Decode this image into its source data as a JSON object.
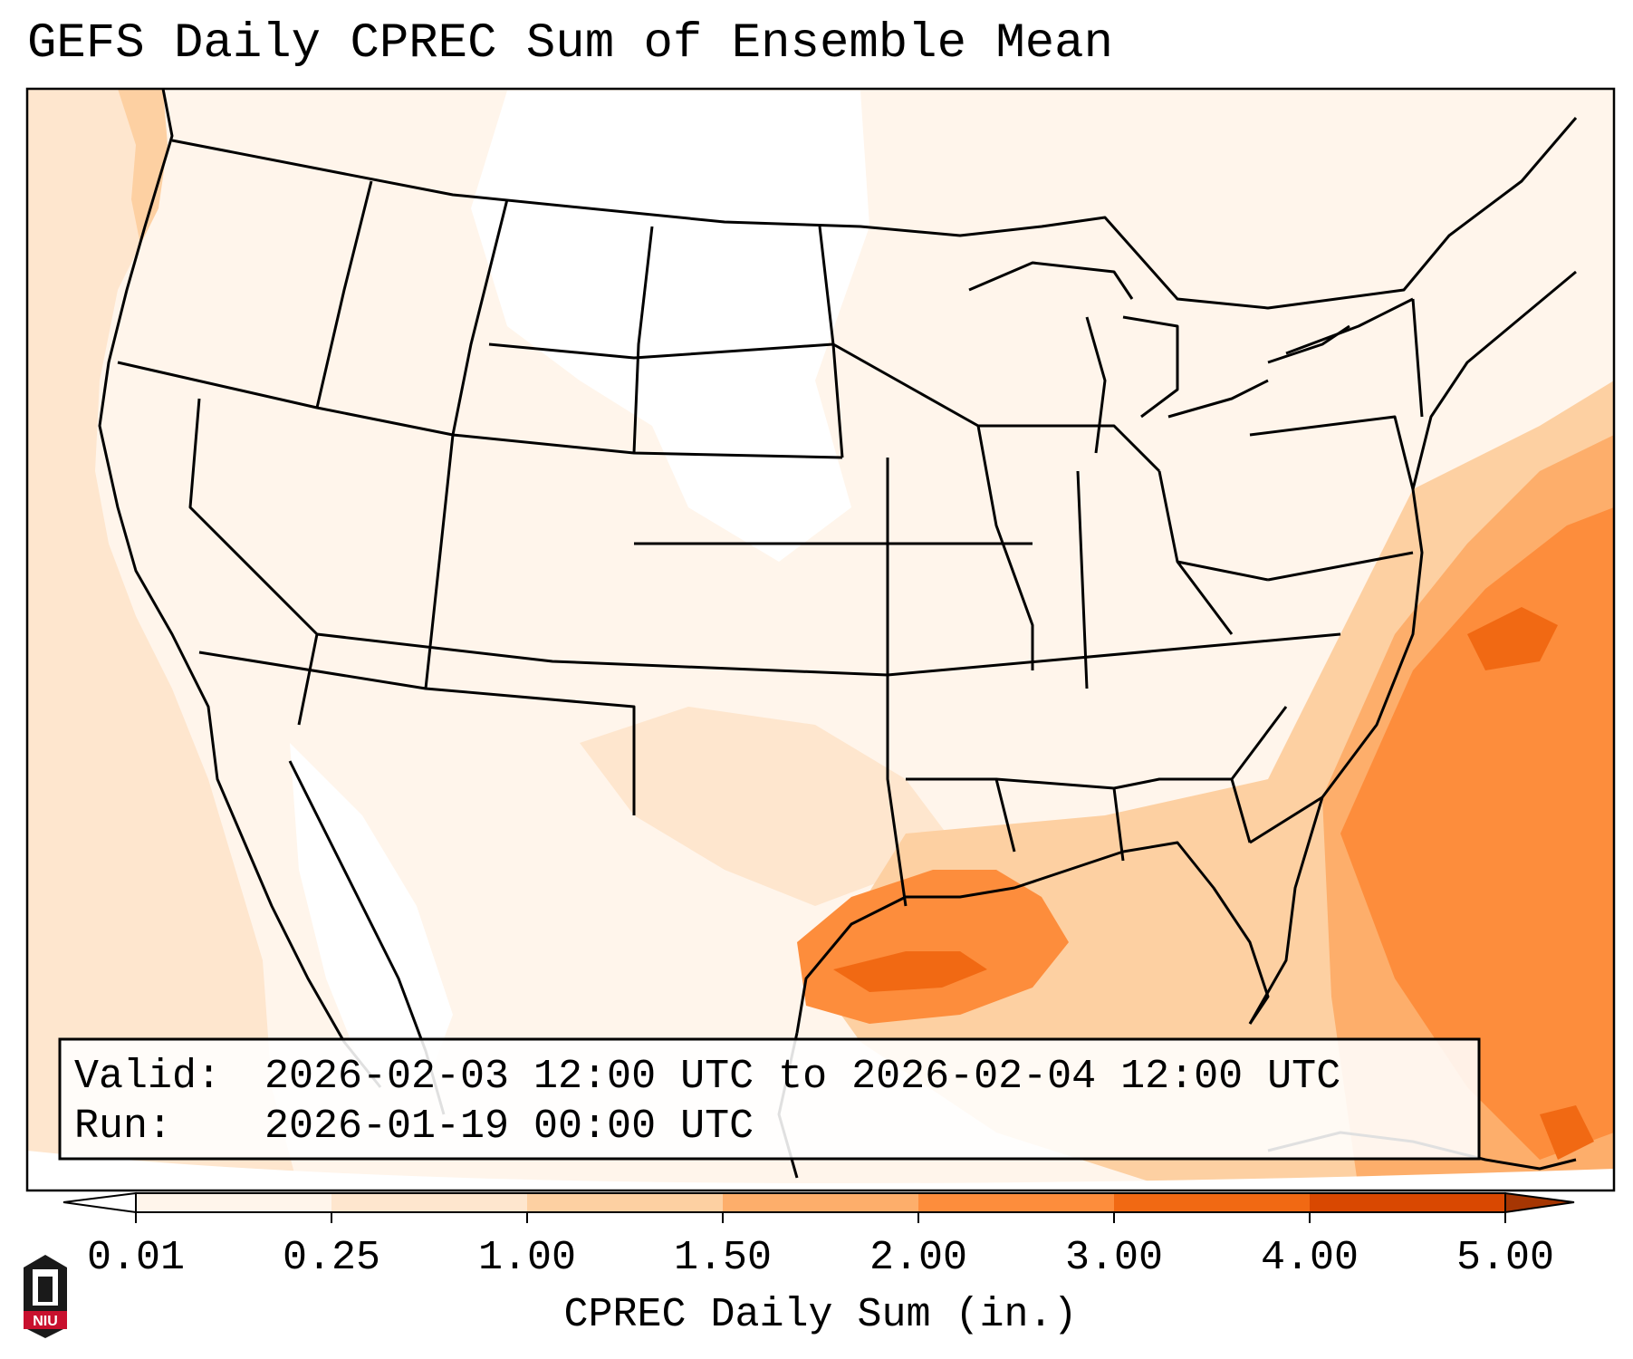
{
  "title": "GEFS Daily CPREC Sum of Ensemble Mean",
  "info": {
    "valid_label": "Valid:",
    "valid_value": "2026-02-03 12:00 UTC to 2026-02-04 12:00 UTC",
    "run_label": "Run:",
    "run_value": "2026-01-19 00:00 UTC"
  },
  "colorbar": {
    "label": "CPREC Daily Sum (in.)",
    "ticks": [
      "0.01",
      "0.25",
      "1.00",
      "1.50",
      "2.00",
      "3.00",
      "4.00",
      "5.00"
    ],
    "colors": [
      "#fff5eb",
      "#fee6ce",
      "#fdd0a2",
      "#fdae6b",
      "#fd8d3c",
      "#f16913",
      "#d94801"
    ],
    "under_color": "#ffffff",
    "over_color": "#a63603"
  },
  "logo": {
    "text": "NIU",
    "color": "#c8102e"
  },
  "map_colors": {
    "none": "#ffffff",
    "trace": "#fff5eb",
    "light": "#fee6ce",
    "moderate": "#fdd0a2",
    "heavy": "#fdae6b",
    "very_heavy": "#fd8d3c",
    "extreme": "#f16913",
    "border": "#000000"
  }
}
